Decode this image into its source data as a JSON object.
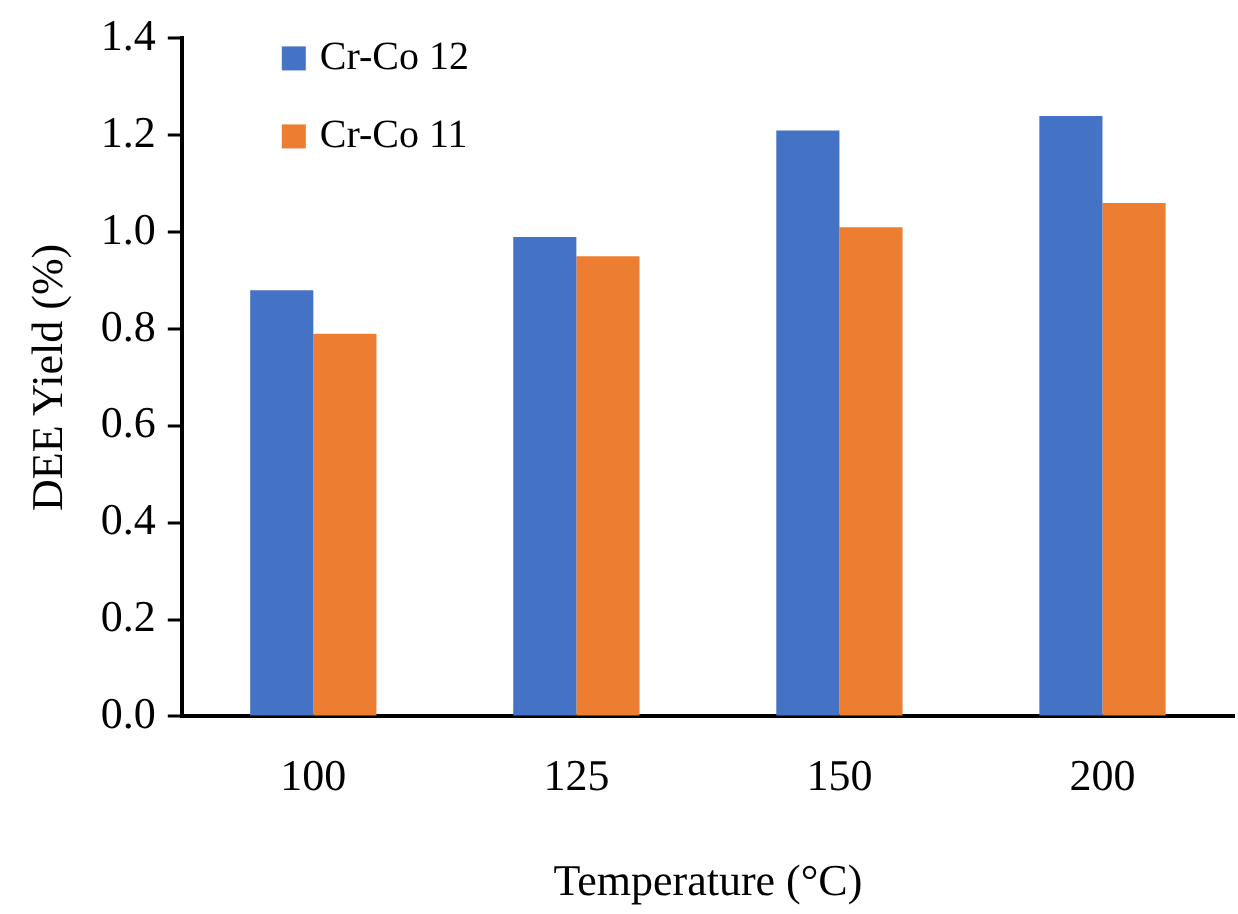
{
  "chart_data": {
    "type": "bar",
    "xlabel": "Temperature (°C)",
    "ylabel": "DEE Yield (%)",
    "categories": [
      "100",
      "125",
      "150",
      "200"
    ],
    "series": [
      {
        "name": "Cr-Co 12",
        "color": "#4472c4",
        "values": [
          0.88,
          0.99,
          1.21,
          1.24
        ]
      },
      {
        "name": "Cr-Co 11",
        "color": "#ed7d31",
        "values": [
          0.79,
          0.95,
          1.01,
          1.06
        ]
      }
    ],
    "ylim": [
      0,
      1.4
    ],
    "yticks": [
      {
        "value": 0,
        "label": "0.0"
      },
      {
        "value": 0.2,
        "label": "0.2"
      },
      {
        "value": 0.4,
        "label": "0.4"
      },
      {
        "value": 0.6,
        "label": "0.6"
      },
      {
        "value": 0.8,
        "label": "0.8"
      },
      {
        "value": 1.0,
        "label": "1.0"
      },
      {
        "value": 1.2,
        "label": "1.2"
      },
      {
        "value": 1.4,
        "label": "1.4"
      }
    ],
    "grid": false,
    "legend": "top left"
  }
}
